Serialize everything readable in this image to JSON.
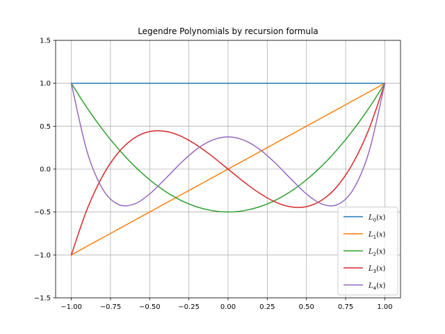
{
  "chart_data": {
    "type": "line",
    "title": "Legendre Polynomials by recursion formula",
    "xlabel": "",
    "ylabel": "",
    "xlim": [
      -1.1,
      1.1
    ],
    "ylim": [
      -1.5,
      1.5
    ],
    "grid": true,
    "legend_position": "lower-right",
    "xticks": [
      -1.0,
      -0.75,
      -0.5,
      -0.25,
      0.0,
      0.25,
      0.5,
      0.75,
      1.0
    ],
    "xtick_labels": [
      "−1.00",
      "−0.75",
      "−0.50",
      "−0.25",
      "0.00",
      "0.25",
      "0.50",
      "0.75",
      "1.00"
    ],
    "yticks": [
      -1.5,
      -1.0,
      -0.5,
      0.0,
      0.5,
      1.0,
      1.5
    ],
    "ytick_labels": [
      "−1.5",
      "−1.0",
      "−0.5",
      "0.0",
      "0.5",
      "1.0",
      "1.5"
    ],
    "x": [
      -1.0,
      -0.9,
      -0.8,
      -0.7,
      -0.6,
      -0.5,
      -0.4,
      -0.3,
      -0.2,
      -0.1,
      0.0,
      0.1,
      0.2,
      0.3,
      0.4,
      0.5,
      0.6,
      0.7,
      0.8,
      0.9,
      1.0
    ],
    "series": [
      {
        "name": "L0(x)",
        "label_base": "L",
        "label_sub": "0",
        "color": "#1f77b4",
        "values": [
          1,
          1,
          1,
          1,
          1,
          1,
          1,
          1,
          1,
          1,
          1,
          1,
          1,
          1,
          1,
          1,
          1,
          1,
          1,
          1,
          1
        ]
      },
      {
        "name": "L1(x)",
        "label_base": "L",
        "label_sub": "1",
        "color": "#ff7f0e",
        "values": [
          -1.0,
          -0.9,
          -0.8,
          -0.7,
          -0.6,
          -0.5,
          -0.4,
          -0.3,
          -0.2,
          -0.1,
          0.0,
          0.1,
          0.2,
          0.3,
          0.4,
          0.5,
          0.6,
          0.7,
          0.8,
          0.9,
          1.0
        ]
      },
      {
        "name": "L2(x)",
        "label_base": "L",
        "label_sub": "2",
        "color": "#2ca02c",
        "values": [
          1.0,
          0.715,
          0.46,
          0.235,
          0.04,
          -0.125,
          -0.26,
          -0.365,
          -0.44,
          -0.485,
          -0.5,
          -0.485,
          -0.44,
          -0.365,
          -0.26,
          -0.125,
          0.04,
          0.235,
          0.46,
          0.715,
          1.0
        ]
      },
      {
        "name": "L3(x)",
        "label_base": "L",
        "label_sub": "3",
        "color": "#d62728",
        "values": [
          -1.0,
          -0.472,
          -0.08,
          0.1925,
          0.36,
          0.4375,
          0.44,
          0.3825,
          0.28,
          0.1475,
          0.0,
          -0.1475,
          -0.28,
          -0.3825,
          -0.44,
          -0.4375,
          -0.36,
          -0.1925,
          0.08,
          0.472,
          1.0
        ]
      },
      {
        "name": "L4(x)",
        "label_base": "L",
        "label_sub": "4",
        "color": "#9467bd",
        "values": [
          1.0,
          0.2079,
          -0.233,
          -0.4121,
          -0.408,
          -0.2891,
          -0.113,
          0.0729,
          0.232,
          0.3379,
          0.375,
          0.3379,
          0.232,
          0.0729,
          -0.113,
          -0.2891,
          -0.408,
          -0.4121,
          -0.233,
          0.2079,
          1.0
        ]
      }
    ]
  }
}
